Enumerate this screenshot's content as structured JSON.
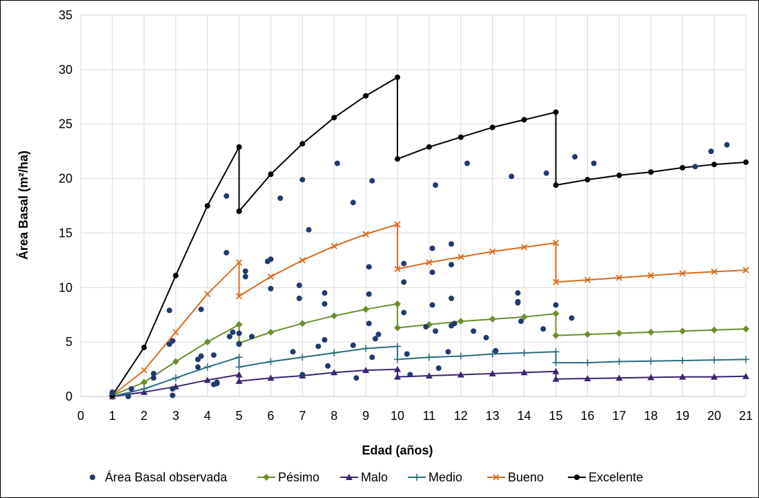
{
  "chart_data": {
    "type": "line",
    "title": "",
    "xlabel": "Edad (años)",
    "ylabel": "Área Basal (m²/ha)",
    "xlim": [
      0,
      21
    ],
    "ylim": [
      0,
      35
    ],
    "xticks": [
      0,
      1,
      2,
      3,
      4,
      5,
      6,
      7,
      8,
      9,
      10,
      11,
      12,
      13,
      14,
      15,
      16,
      17,
      18,
      19,
      20,
      21
    ],
    "yticks": [
      0,
      5,
      10,
      15,
      20,
      25,
      30,
      35
    ],
    "grid": true,
    "legend_position": "bottom",
    "scatter": {
      "name": "Área Basal observada",
      "color": "#1f3a6e",
      "points": [
        [
          1.0,
          0.4
        ],
        [
          1.0,
          0.3
        ],
        [
          1.5,
          0.0
        ],
        [
          1.6,
          0.7
        ],
        [
          2.3,
          2.1
        ],
        [
          2.3,
          1.7
        ],
        [
          2.8,
          4.8
        ],
        [
          2.8,
          7.9
        ],
        [
          2.9,
          5.1
        ],
        [
          2.9,
          0.7
        ],
        [
          2.9,
          0.1
        ],
        [
          3.7,
          3.4
        ],
        [
          3.7,
          2.7
        ],
        [
          3.8,
          8.0
        ],
        [
          3.8,
          3.7
        ],
        [
          4.2,
          3.8
        ],
        [
          4.2,
          1.1
        ],
        [
          4.3,
          1.3
        ],
        [
          4.3,
          1.2
        ],
        [
          4.6,
          13.2
        ],
        [
          4.6,
          18.4
        ],
        [
          4.7,
          5.5
        ],
        [
          4.8,
          5.9
        ],
        [
          5.0,
          5.8
        ],
        [
          5.0,
          4.8
        ],
        [
          5.2,
          11.0
        ],
        [
          5.2,
          11.5
        ],
        [
          5.4,
          5.5
        ],
        [
          5.9,
          12.4
        ],
        [
          6.0,
          12.6
        ],
        [
          6.0,
          9.9
        ],
        [
          6.3,
          18.2
        ],
        [
          6.7,
          4.1
        ],
        [
          6.9,
          10.2
        ],
        [
          6.9,
          9.0
        ],
        [
          7.0,
          19.9
        ],
        [
          7.0,
          2.0
        ],
        [
          7.2,
          15.3
        ],
        [
          7.5,
          4.6
        ],
        [
          7.7,
          9.5
        ],
        [
          7.7,
          8.5
        ],
        [
          7.7,
          5.2
        ],
        [
          7.8,
          2.8
        ],
        [
          8.1,
          21.4
        ],
        [
          8.6,
          17.8
        ],
        [
          8.6,
          4.7
        ],
        [
          8.7,
          1.7
        ],
        [
          9.1,
          11.9
        ],
        [
          9.1,
          9.4
        ],
        [
          9.1,
          6.7
        ],
        [
          9.2,
          19.8
        ],
        [
          9.2,
          3.6
        ],
        [
          9.3,
          5.3
        ],
        [
          9.4,
          5.7
        ],
        [
          10.2,
          12.2
        ],
        [
          10.2,
          10.5
        ],
        [
          10.2,
          7.7
        ],
        [
          10.3,
          3.9
        ],
        [
          10.4,
          2.0
        ],
        [
          10.9,
          6.4
        ],
        [
          11.1,
          13.6
        ],
        [
          11.1,
          11.4
        ],
        [
          11.1,
          8.4
        ],
        [
          11.2,
          19.4
        ],
        [
          11.2,
          6.0
        ],
        [
          11.3,
          2.6
        ],
        [
          11.6,
          4.1
        ],
        [
          11.7,
          14.0
        ],
        [
          11.7,
          12.1
        ],
        [
          11.7,
          9.0
        ],
        [
          11.7,
          6.5
        ],
        [
          11.8,
          6.7
        ],
        [
          12.2,
          21.4
        ],
        [
          12.4,
          6.0
        ],
        [
          12.8,
          5.4
        ],
        [
          13.1,
          4.2
        ],
        [
          13.6,
          20.2
        ],
        [
          13.8,
          9.5
        ],
        [
          13.8,
          8.7
        ],
        [
          13.8,
          8.6
        ],
        [
          13.9,
          6.9
        ],
        [
          14.6,
          6.2
        ],
        [
          14.7,
          20.5
        ],
        [
          15.0,
          8.4
        ],
        [
          15.5,
          7.2
        ],
        [
          15.6,
          22.0
        ],
        [
          16.2,
          21.4
        ],
        [
          19.4,
          21.1
        ],
        [
          19.9,
          22.5
        ],
        [
          20.4,
          23.1
        ]
      ]
    },
    "series": [
      {
        "name": "Pésimo",
        "color": "#6b8f2a",
        "marker": "diamond",
        "segments": [
          [
            [
              1,
              0.1
            ],
            [
              2,
              1.3
            ],
            [
              3,
              3.2
            ],
            [
              4,
              5.0
            ],
            [
              5,
              6.6
            ]
          ],
          [
            [
              5,
              4.9
            ],
            [
              6,
              5.9
            ],
            [
              7,
              6.7
            ],
            [
              8,
              7.4
            ],
            [
              9,
              8.0
            ],
            [
              10,
              8.5
            ]
          ],
          [
            [
              10,
              6.3
            ],
            [
              11,
              6.6
            ],
            [
              12,
              6.9
            ],
            [
              13,
              7.1
            ],
            [
              14,
              7.3
            ],
            [
              15,
              7.6
            ]
          ],
          [
            [
              15,
              5.6
            ],
            [
              16,
              5.7
            ],
            [
              17,
              5.8
            ],
            [
              18,
              5.9
            ],
            [
              19,
              6.0
            ],
            [
              20,
              6.1
            ],
            [
              21,
              6.2
            ]
          ]
        ]
      },
      {
        "name": "Malo",
        "color": "#3b2470",
        "marker": "triangle",
        "segments": [
          [
            [
              1,
              0.0
            ],
            [
              2,
              0.4
            ],
            [
              3,
              0.9
            ],
            [
              4,
              1.5
            ],
            [
              5,
              2.0
            ]
          ],
          [
            [
              5,
              1.4
            ],
            [
              6,
              1.7
            ],
            [
              7,
              1.9
            ],
            [
              8,
              2.2
            ],
            [
              9,
              2.4
            ],
            [
              10,
              2.5
            ]
          ],
          [
            [
              10,
              1.8
            ],
            [
              11,
              1.9
            ],
            [
              12,
              2.0
            ],
            [
              13,
              2.1
            ],
            [
              14,
              2.2
            ],
            [
              15,
              2.3
            ]
          ],
          [
            [
              15,
              1.6
            ],
            [
              16,
              1.65
            ],
            [
              17,
              1.7
            ],
            [
              18,
              1.75
            ],
            [
              19,
              1.8
            ],
            [
              20,
              1.8
            ],
            [
              21,
              1.85
            ]
          ]
        ]
      },
      {
        "name": "Medio",
        "color": "#2c6b7e",
        "marker": "plus",
        "segments": [
          [
            [
              1,
              0.0
            ],
            [
              2,
              0.7
            ],
            [
              3,
              1.7
            ],
            [
              4,
              2.7
            ],
            [
              5,
              3.6
            ]
          ],
          [
            [
              5,
              2.7
            ],
            [
              6,
              3.2
            ],
            [
              7,
              3.6
            ],
            [
              8,
              4.0
            ],
            [
              9,
              4.4
            ],
            [
              10,
              4.6
            ]
          ],
          [
            [
              10,
              3.4
            ],
            [
              11,
              3.6
            ],
            [
              12,
              3.7
            ],
            [
              13,
              3.9
            ],
            [
              14,
              4.0
            ],
            [
              15,
              4.1
            ]
          ],
          [
            [
              15,
              3.1
            ],
            [
              16,
              3.1
            ],
            [
              17,
              3.2
            ],
            [
              18,
              3.25
            ],
            [
              19,
              3.3
            ],
            [
              20,
              3.35
            ],
            [
              21,
              3.4
            ]
          ]
        ]
      },
      {
        "name": "Bueno",
        "color": "#d86b1f",
        "marker": "x",
        "segments": [
          [
            [
              1,
              0.1
            ],
            [
              2,
              2.4
            ],
            [
              3,
              5.9
            ],
            [
              4,
              9.4
            ],
            [
              5,
              12.3
            ]
          ],
          [
            [
              5,
              9.2
            ],
            [
              6,
              11.0
            ],
            [
              7,
              12.5
            ],
            [
              8,
              13.8
            ],
            [
              9,
              14.9
            ],
            [
              10,
              15.8
            ]
          ],
          [
            [
              10,
              11.7
            ],
            [
              11,
              12.3
            ],
            [
              12,
              12.8
            ],
            [
              13,
              13.3
            ],
            [
              14,
              13.7
            ],
            [
              15,
              14.1
            ]
          ],
          [
            [
              15,
              10.5
            ],
            [
              16,
              10.7
            ],
            [
              17,
              10.9
            ],
            [
              18,
              11.1
            ],
            [
              19,
              11.3
            ],
            [
              20,
              11.45
            ],
            [
              21,
              11.6
            ]
          ]
        ]
      },
      {
        "name": "Excelente",
        "color": "#000000",
        "marker": "circle",
        "segments": [
          [
            [
              1,
              0.1
            ],
            [
              2,
              4.5
            ],
            [
              3,
              11.1
            ],
            [
              4,
              17.5
            ],
            [
              5,
              22.9
            ]
          ],
          [
            [
              5,
              17.0
            ],
            [
              6,
              20.4
            ],
            [
              7,
              23.2
            ],
            [
              8,
              25.6
            ],
            [
              9,
              27.6
            ],
            [
              10,
              29.3
            ]
          ],
          [
            [
              10,
              21.8
            ],
            [
              11,
              22.9
            ],
            [
              12,
              23.8
            ],
            [
              13,
              24.7
            ],
            [
              14,
              25.4
            ],
            [
              15,
              26.1
            ]
          ],
          [
            [
              15,
              19.4
            ],
            [
              16,
              19.9
            ],
            [
              17,
              20.3
            ],
            [
              18,
              20.6
            ],
            [
              19,
              21.0
            ],
            [
              20,
              21.3
            ],
            [
              21,
              21.5
            ]
          ]
        ]
      }
    ]
  }
}
